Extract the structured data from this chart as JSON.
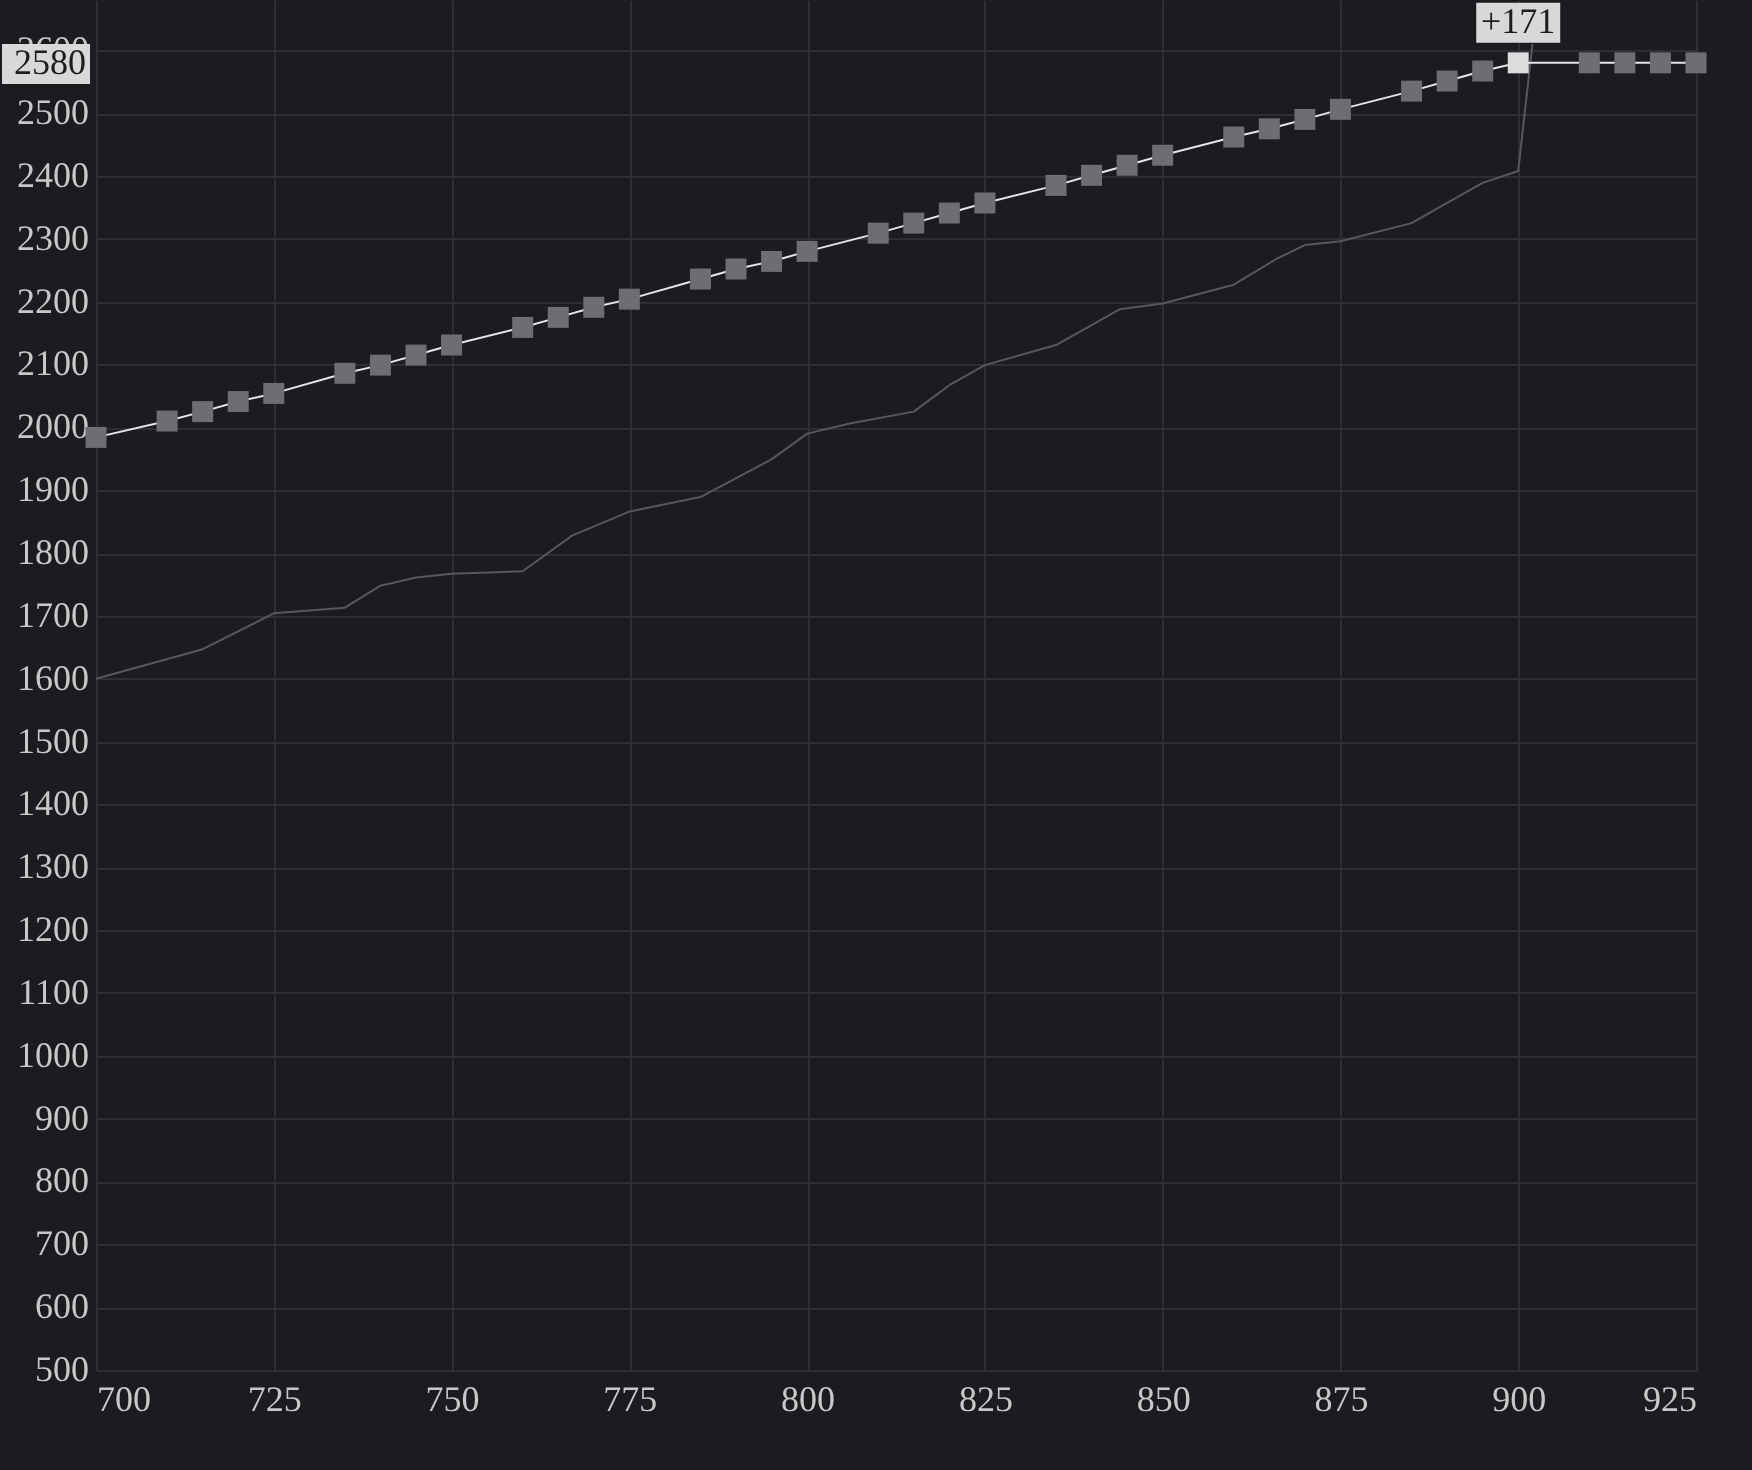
{
  "chart_data": {
    "type": "line",
    "xlim": [
      700,
      925
    ],
    "xticks": [
      700,
      725,
      750,
      775,
      800,
      825,
      850,
      875,
      900,
      925
    ],
    "ylim": [
      500,
      2680
    ],
    "yticks": [
      500,
      600,
      700,
      800,
      900,
      1000,
      1100,
      1200,
      1300,
      1400,
      1500,
      1600,
      1700,
      1800,
      1900,
      2000,
      2100,
      2200,
      2300,
      2400,
      2500,
      2600
    ],
    "grid": true,
    "series": [
      {
        "color": "#58585c",
        "marker": "none",
        "x": [
          700,
          715,
          725,
          735,
          740,
          745,
          750,
          760,
          767,
          775,
          785,
          795,
          800,
          806,
          815,
          820,
          825,
          835,
          844,
          850,
          860,
          866,
          870,
          875,
          885,
          890,
          895,
          900,
          902
        ],
        "values": [
          1600,
          1647,
          1704,
          1713,
          1748,
          1761,
          1767,
          1771,
          1828,
          1866,
          1889,
          1949,
          1990,
          2006,
          2025,
          2067,
          2099,
          2131,
          2188,
          2197,
          2227,
          2268,
          2290,
          2296,
          2325,
          2357,
          2389,
          2408,
          2610
        ]
      },
      {
        "color": "#e6e6e6",
        "marker": "square",
        "x": [
          700,
          710,
          715,
          720,
          725,
          735,
          740,
          745,
          750,
          760,
          765,
          770,
          775,
          785,
          790,
          795,
          800,
          810,
          815,
          820,
          825,
          835,
          840,
          845,
          850,
          860,
          865,
          870,
          875,
          885,
          890,
          895,
          900,
          910,
          915,
          920,
          925
        ],
        "values": [
          1984,
          2010,
          2025,
          2041,
          2054,
          2086,
          2099,
          2115,
          2131,
          2159,
          2175,
          2191,
          2204,
          2236,
          2252,
          2264,
          2280,
          2309,
          2325,
          2341,
          2357,
          2385,
          2401,
          2417,
          2433,
          2462,
          2475,
          2490,
          2506,
          2535,
          2551,
          2567,
          2580,
          2580,
          2580,
          2580,
          2580
        ],
        "colors": [
          "#6e6e72",
          "#6e6e72",
          "#6e6e72",
          "#6e6e72",
          "#6e6e72",
          "#6e6e72",
          "#6e6e72",
          "#6e6e72",
          "#6e6e72",
          "#6e6e72",
          "#6e6e72",
          "#6e6e72",
          "#6e6e72",
          "#6e6e72",
          "#6e6e72",
          "#6e6e72",
          "#6e6e72",
          "#6e6e72",
          "#6e6e72",
          "#6e6e72",
          "#6e6e72",
          "#6e6e72",
          "#6e6e72",
          "#6e6e72",
          "#6e6e72",
          "#6e6e72",
          "#6e6e72",
          "#6e6e72",
          "#6e6e72",
          "#6e6e72",
          "#6e6e72",
          "#6e6e72",
          "#dcdcdc",
          "#6e6e72",
          "#6e6e72",
          "#6e6e72",
          "#6e6e72"
        ]
      }
    ],
    "annotations": [
      {
        "text": "+171",
        "x": 900,
        "y": 2580
      },
      "2580"
    ]
  }
}
